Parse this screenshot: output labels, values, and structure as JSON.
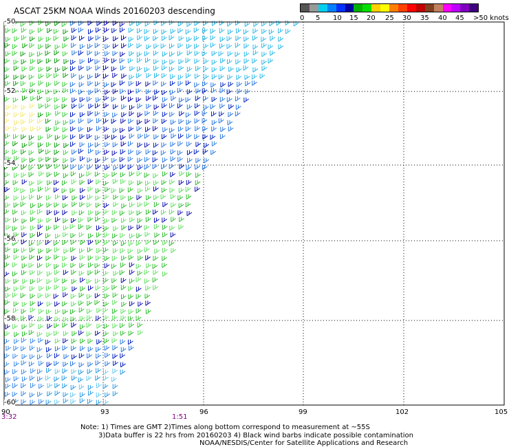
{
  "title": "ASCAT 25KM NOAA Winds 20160203 descending",
  "colorbar": {
    "colors": [
      "#555555",
      "#999999",
      "#00d0f0",
      "#0080ff",
      "#0030ff",
      "#0000a0",
      "#00b000",
      "#00e000",
      "#ffd000",
      "#ffff00",
      "#ff8000",
      "#ff4000",
      "#ff0000",
      "#c00000",
      "#804020",
      "#c08060",
      "#ff00ff",
      "#c000ff",
      "#8000c0",
      "#400080"
    ],
    "labels": [
      "0",
      "5",
      "10",
      "15",
      "20",
      "25",
      "30",
      "35",
      "40",
      "45",
      ">50 knots"
    ]
  },
  "axes": {
    "lat_labels": [
      "-50",
      "-52",
      "-54",
      "-56",
      "-58",
      "-60"
    ],
    "lon_labels": [
      "90",
      "93",
      "96",
      "99",
      "102",
      "105"
    ],
    "time_labels": [
      "3:32",
      "1:51"
    ]
  },
  "notes": [
    "Note: 1) Times are GMT 2)Times along bottom correspond to measurement at ~55S",
    "3)Data buffer is 22 hrs from 20160203 4) Black wind barbs indicate possible contamination",
    "NOAA/NESDIS/Center for Satellite Applications and Research"
  ]
}
